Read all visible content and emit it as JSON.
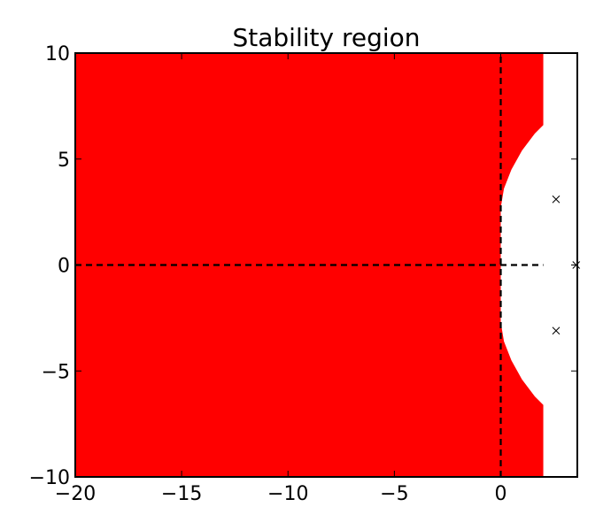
{
  "chart_data": {
    "type": "area",
    "title": "Stability region",
    "xlabel": "",
    "ylabel": "",
    "xlim": [
      -20,
      3.6
    ],
    "ylim": [
      -10,
      10
    ],
    "xticks": [
      -20,
      -15,
      -10,
      -5,
      0
    ],
    "yticks": [
      -10,
      -5,
      0,
      5,
      10
    ],
    "xtick_labels": [
      "−20",
      "−15",
      "−10",
      "−5",
      "0"
    ],
    "ytick_labels": [
      "−10",
      "−5",
      "0",
      "5",
      "10"
    ],
    "grid": false,
    "region": {
      "fill_color": "#ff0000",
      "x_right_edge": 2.0,
      "boundary_curve": [
        [
          2.0,
          6.6
        ],
        [
          1.6,
          6.2
        ],
        [
          1.0,
          5.4
        ],
        [
          0.5,
          4.5
        ],
        [
          0.15,
          3.6
        ],
        [
          0.0,
          2.7
        ],
        [
          0.0,
          0.0
        ],
        [
          0.0,
          -2.7
        ],
        [
          0.15,
          -3.6
        ],
        [
          0.5,
          -4.5
        ],
        [
          1.0,
          -5.4
        ],
        [
          1.6,
          -6.2
        ],
        [
          2.0,
          -6.6
        ]
      ]
    },
    "dashed_lines": [
      {
        "orientation": "vertical",
        "x": 0,
        "y_range": [
          -10,
          10
        ]
      },
      {
        "orientation": "horizontal",
        "y": 0,
        "x_range": [
          -20,
          2.0
        ]
      }
    ],
    "markers": [
      {
        "x": 2.6,
        "y": 3.1,
        "symbol": "x"
      },
      {
        "x": 2.6,
        "y": -3.1,
        "symbol": "x"
      },
      {
        "x": 3.55,
        "y": 0,
        "symbol": "x"
      }
    ]
  }
}
